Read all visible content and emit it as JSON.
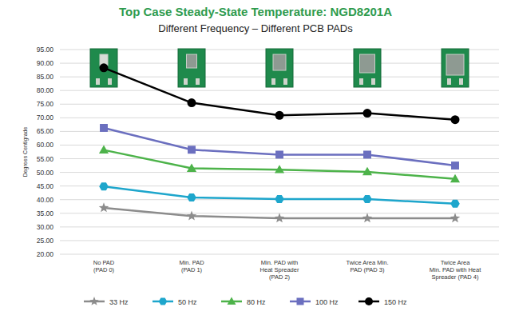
{
  "chart_data": {
    "type": "line",
    "title": "Top Case Steady-State Temperature: NGD8201A",
    "subtitle": "Different Frequency – Different PCB PADs",
    "y_label": "Degrees Centigrade",
    "categories": [
      "No PAD\n(PAD 0)",
      "Min. PAD\n(PAD 1)",
      "Min. PAD with\nHeat Spreader\n(PAD 2)",
      "Twice Area Min.\nPAD (PAD 3)",
      "Twice Area\nMin. PAD with Heat\nSpreader (PAD 4)"
    ],
    "series": [
      {
        "name": "33 Hz",
        "color": "#8c8c8c",
        "marker": "star",
        "line_style": "solid",
        "values": [
          37.0,
          34.0,
          33.2,
          33.2,
          33.2
        ]
      },
      {
        "name": "50 Hz",
        "color": "#1ea6cc",
        "marker": "hexagon",
        "line_style": "solid",
        "values": [
          44.8,
          40.8,
          40.2,
          40.2,
          38.5
        ]
      },
      {
        "name": "80 Hz",
        "color": "#4db34a",
        "marker": "triangle",
        "line_style": "solid",
        "values": [
          58.2,
          51.5,
          51.0,
          50.2,
          47.6
        ]
      },
      {
        "name": "100 Hz",
        "color": "#6b6fbf",
        "marker": "square",
        "line_style": "solid",
        "values": [
          66.3,
          58.3,
          56.5,
          56.5,
          52.5
        ]
      },
      {
        "name": "150 Hz",
        "color": "#000000",
        "marker": "circle",
        "line_style": "solid",
        "values": [
          88.3,
          75.5,
          70.9,
          71.7,
          69.3
        ]
      }
    ],
    "ylim": [
      20,
      95
    ],
    "yticks": [
      {
        "value": 20,
        "label": "20.00"
      },
      {
        "value": 25,
        "label": "25.00"
      },
      {
        "value": 30,
        "label": "30.00"
      },
      {
        "value": 35,
        "label": "35.00"
      },
      {
        "value": 40,
        "label": "40.00"
      },
      {
        "value": 45,
        "label": "45.00"
      },
      {
        "value": 50,
        "label": "50.00"
      },
      {
        "value": 55,
        "label": "55.00"
      },
      {
        "value": 60,
        "label": "60.00"
      },
      {
        "value": 65,
        "label": "65.00"
      },
      {
        "value": 70,
        "label": "70.00"
      },
      {
        "value": 75,
        "label": "75.00"
      },
      {
        "value": 80,
        "label": "80.00"
      },
      {
        "value": 85,
        "label": "85.00"
      },
      {
        "value": 90,
        "label": "90.00"
      },
      {
        "value": 95,
        "label": "95.00"
      }
    ],
    "grid": true,
    "legend": "bottom"
  }
}
